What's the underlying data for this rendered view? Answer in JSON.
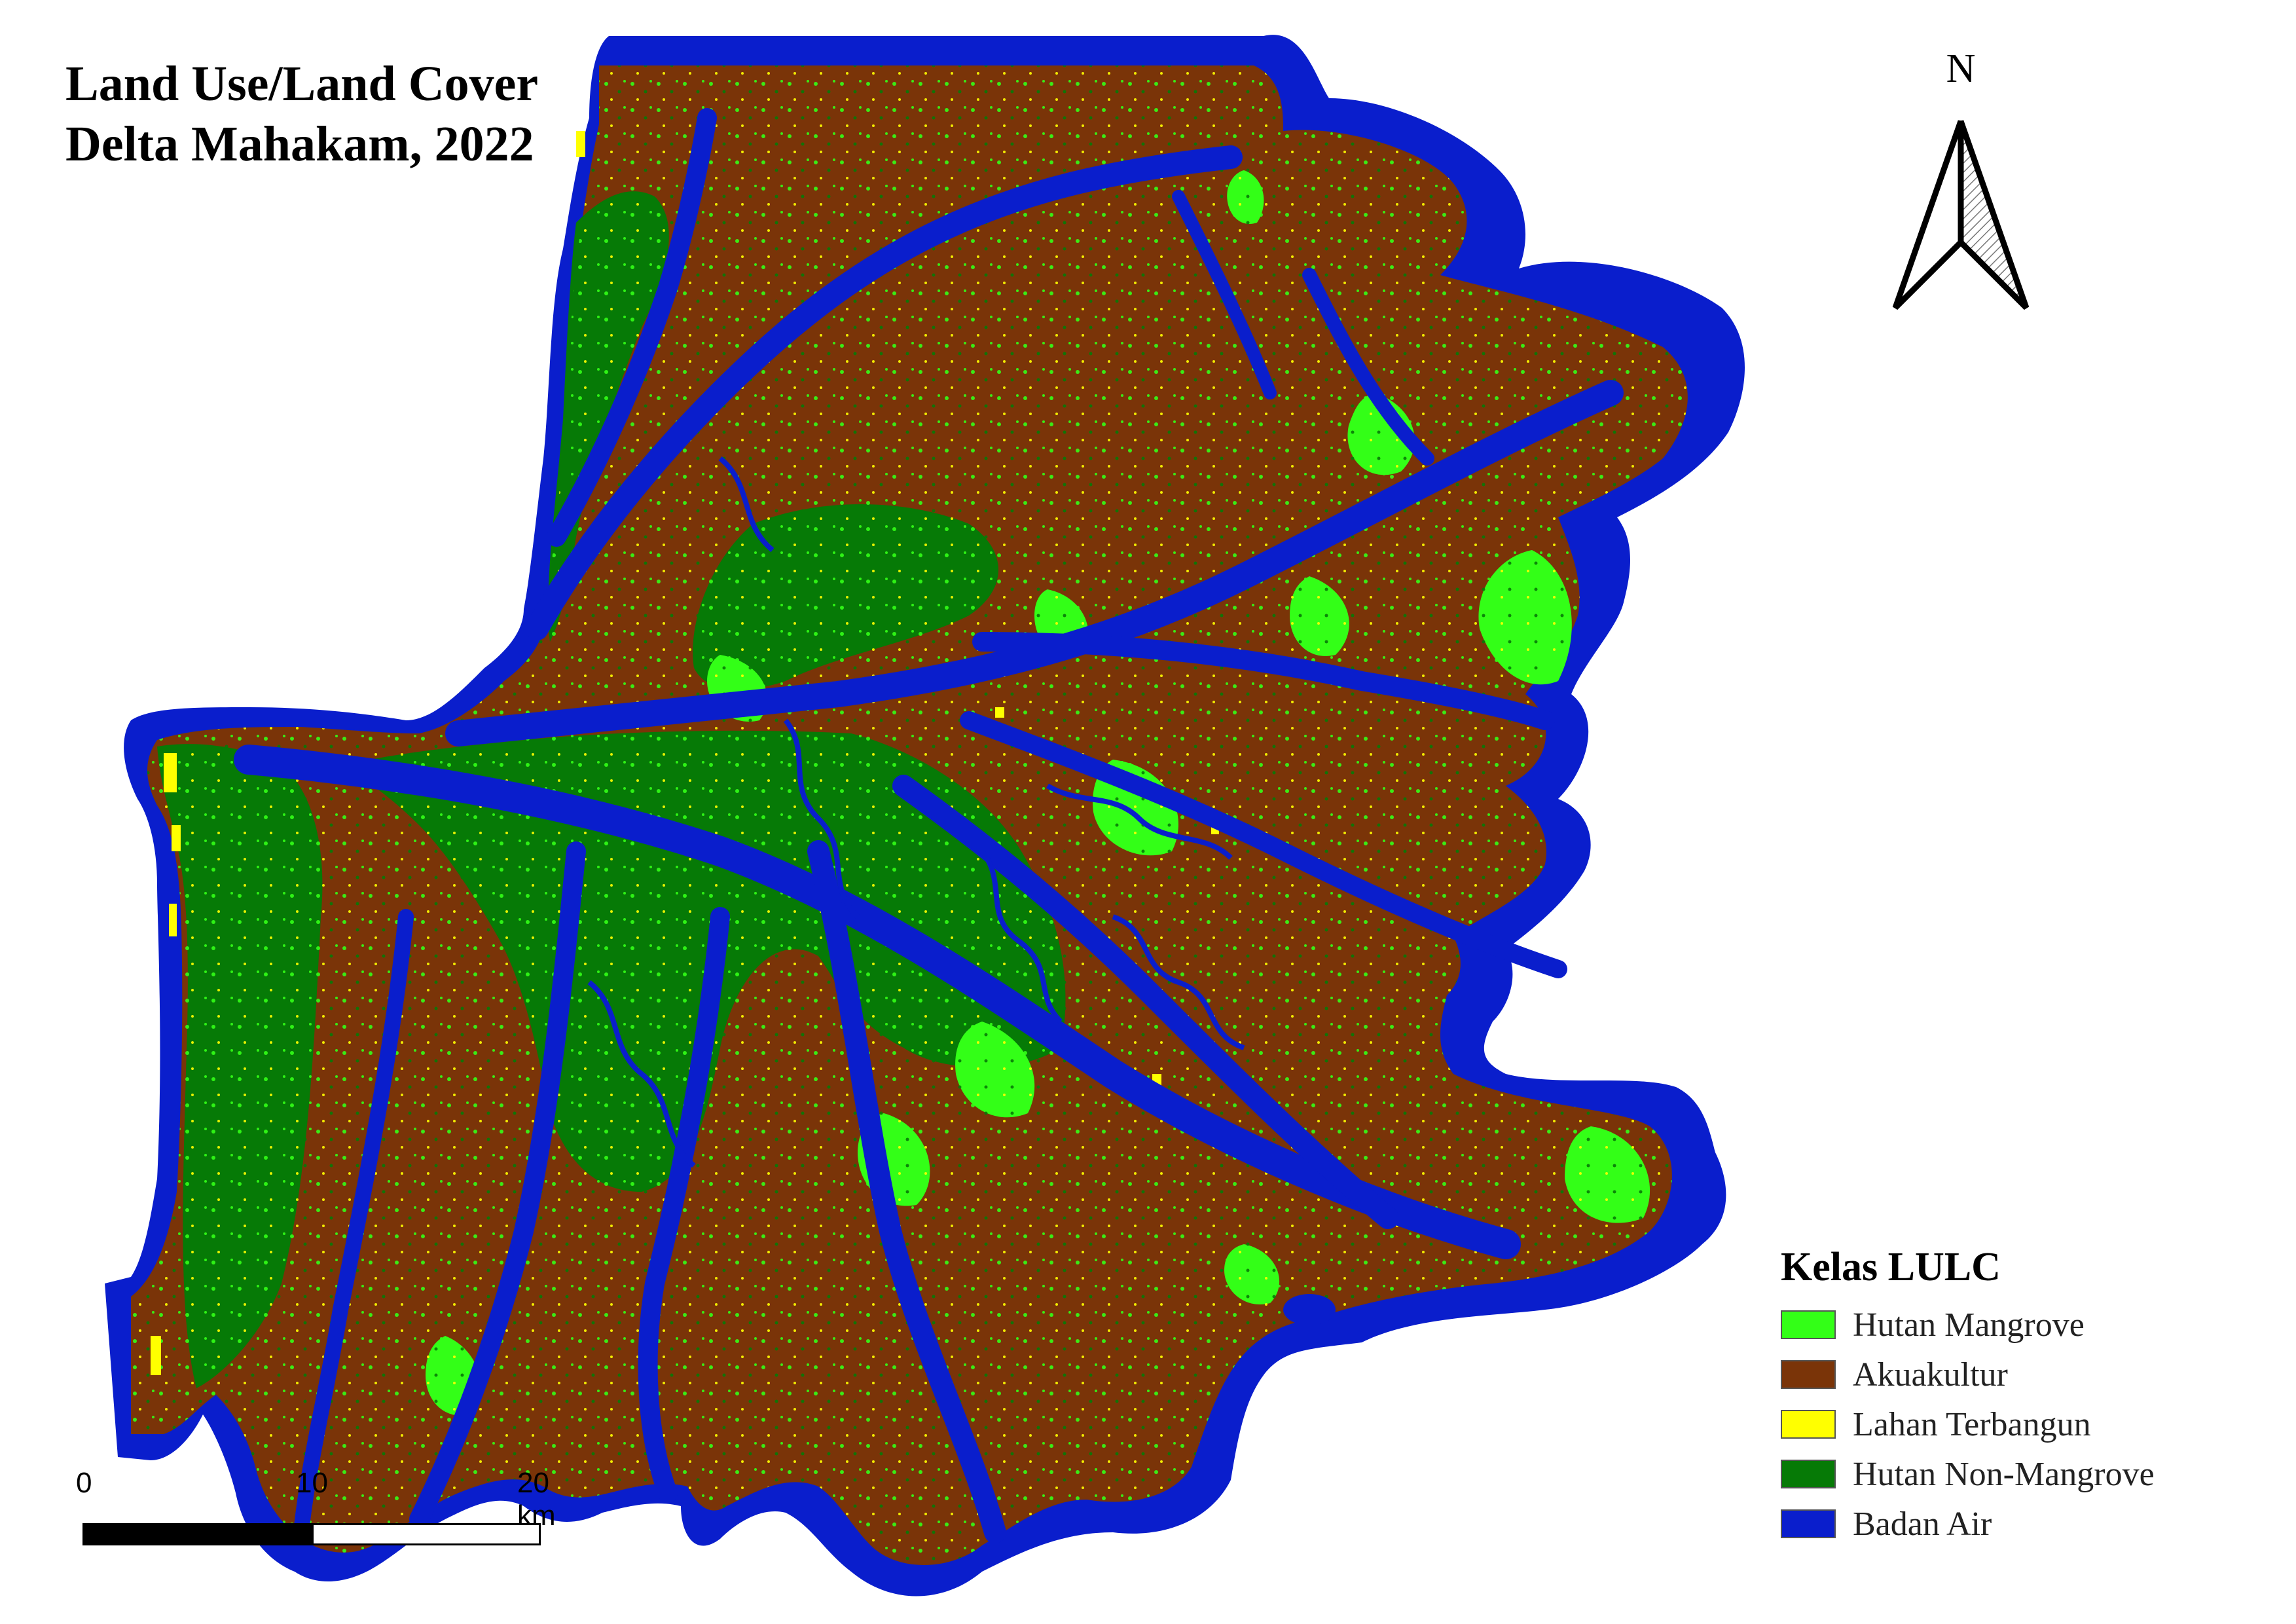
{
  "title": {
    "line1": "Land Use/Land Cover",
    "line2": "Delta Mahakam, 2022"
  },
  "north_arrow": {
    "label": "N",
    "icon": "north-arrow-icon"
  },
  "scale_bar": {
    "ticks": [
      "0",
      "10",
      "20 km"
    ]
  },
  "legend": {
    "title": "Kelas LULC",
    "items": [
      {
        "label": "Hutan Mangrove",
        "color": "#33ff17"
      },
      {
        "label": "Akuakultur",
        "color": "#7a3408"
      },
      {
        "label": "Lahan Terbangun",
        "color": "#ffff00"
      },
      {
        "label": "Hutan Non-Mangrove",
        "color": "#067a06"
      },
      {
        "label": "Badan Air",
        "color": "#0a1ecc"
      }
    ]
  }
}
